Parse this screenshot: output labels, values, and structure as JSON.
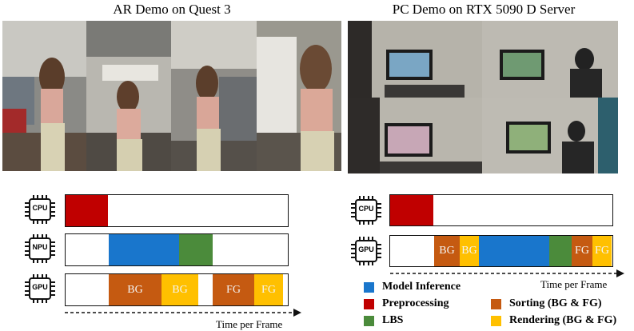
{
  "titles": {
    "left": "AR Demo on Quest 3",
    "right": "PC Demo on RTX 5090 D Server"
  },
  "chips": {
    "cpu": "CPU",
    "npu": "NPU",
    "gpu": "GPU"
  },
  "segments": {
    "bg": "BG",
    "fg": "FG"
  },
  "time_label": "Time per Frame",
  "legend": [
    {
      "label": "Model Inference",
      "color": "#1976cc"
    },
    {
      "label": "Preprocessing",
      "color": "#c00000"
    },
    {
      "label": "LBS",
      "color": "#4b8b3b"
    },
    {
      "label": "Sorting (BG & FG)",
      "color": "#c55a11"
    },
    {
      "label": "Rendering (BG & FG)",
      "color": "#ffc000"
    }
  ],
  "colors": {
    "model_inference": "#1976cc",
    "preprocessing": "#c00000",
    "lbs": "#4b8b3b",
    "sorting": "#c55a11",
    "rendering": "#ffc000"
  }
}
